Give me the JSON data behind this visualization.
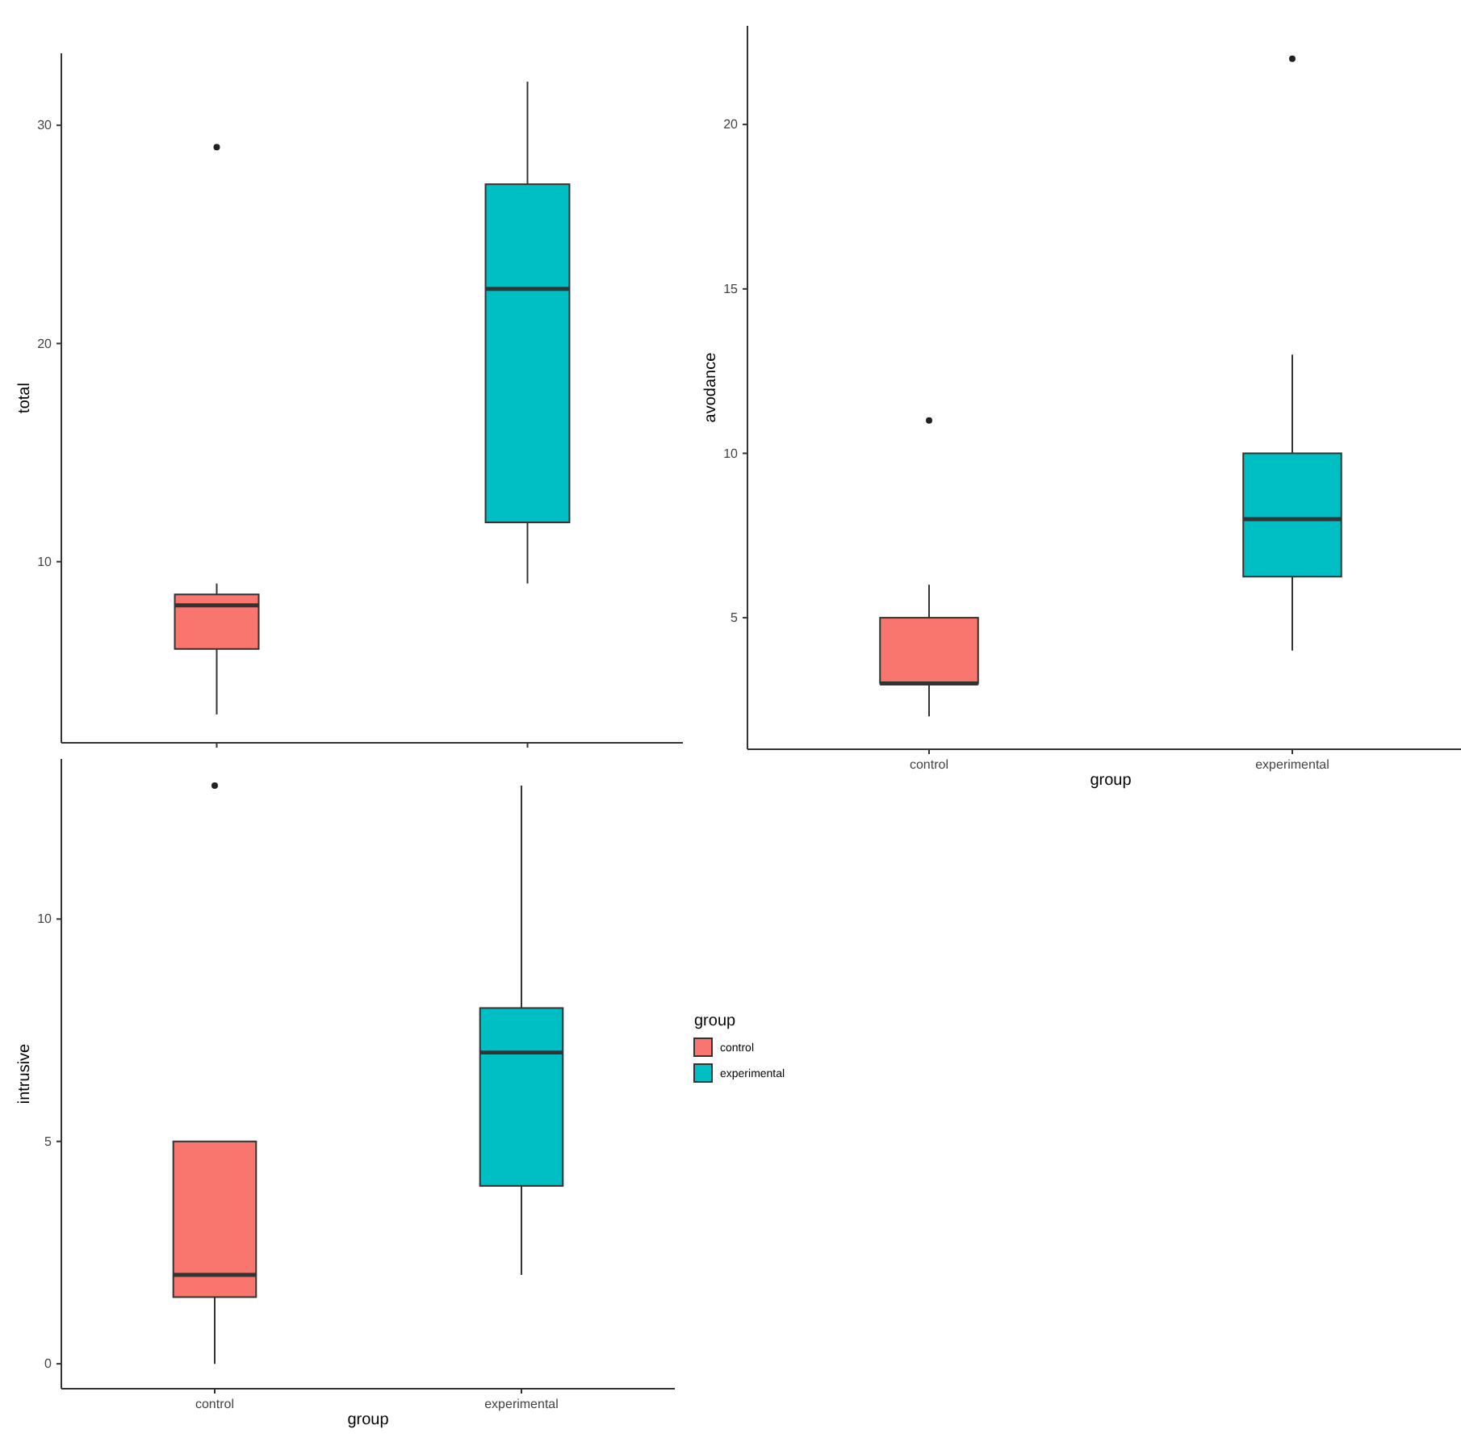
{
  "chart_data": [
    {
      "type": "box",
      "ylabel": "total",
      "categories": [
        null,
        null
      ],
      "ylim": [
        1.7,
        33.3
      ],
      "yticks": [
        10,
        20,
        30
      ],
      "tick_labels": "y",
      "grid": false,
      "legend": false,
      "series": [
        {
          "color": "#f8766d",
          "boxes": [
            {
              "low": 3,
              "q1": 6,
              "median": 8,
              "q3": 8.5,
              "high": 9,
              "outliers": [
                29
              ]
            },
            null
          ]
        },
        {
          "color": "#00bfc4",
          "boxes": [
            null,
            {
              "low": 9,
              "q1": 11.8,
              "median": 22.5,
              "q3": 27.3,
              "high": 32
            }
          ]
        }
      ]
    },
    {
      "type": "box",
      "xlabel": "group",
      "ylabel": "avodance",
      "categories": [
        "control",
        "experimental"
      ],
      "ylim": [
        1,
        23
      ],
      "yticks": [
        5,
        10,
        15,
        20
      ],
      "grid": false,
      "legend": false,
      "series": [
        {
          "color": "#f8766d",
          "boxes": [
            {
              "low": 2,
              "q1": 3,
              "median": 3,
              "q3": 5,
              "high": 6,
              "outliers": [
                11
              ]
            },
            null
          ]
        },
        {
          "color": "#00bfc4",
          "boxes": [
            null,
            {
              "low": 4,
              "q1": 6.25,
              "median": 8,
              "q3": 10,
              "high": 13,
              "outliers": [
                22
              ]
            }
          ]
        }
      ]
    },
    {
      "type": "box",
      "xlabel": "group",
      "ylabel": "intrusive",
      "legend_title": "group",
      "categories": [
        "control",
        "experimental"
      ],
      "ylim": [
        -0.56,
        13.6
      ],
      "yticks": [
        0,
        5,
        10
      ],
      "grid": false,
      "legend": "right",
      "series": [
        {
          "name": "control",
          "color": "#f8766d",
          "boxes": [
            {
              "low": 0,
              "q1": 1.5,
              "median": 2,
              "q3": 5,
              "high": 5,
              "outliers": [
                13
              ]
            },
            null
          ]
        },
        {
          "name": "experimental",
          "color": "#00bfc4",
          "boxes": [
            null,
            {
              "low": 2,
              "q1": 4,
              "median": 7,
              "q3": 8,
              "high": 13
            }
          ]
        }
      ]
    }
  ]
}
